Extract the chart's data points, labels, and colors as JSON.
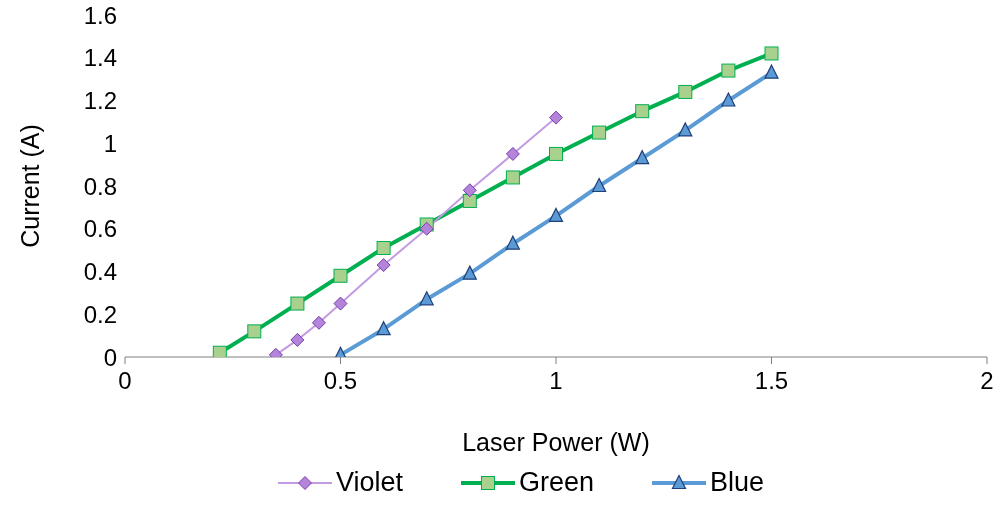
{
  "chart_data": {
    "type": "line",
    "xlabel": "Laser Power (W)",
    "ylabel": "Current (A)",
    "xlim": [
      0,
      2
    ],
    "xticks": [
      0,
      0.5,
      1,
      1.5,
      2
    ],
    "ylim": [
      0,
      1.6
    ],
    "yticks": [
      0,
      0.2,
      0.4,
      0.6,
      0.8,
      1,
      1.2,
      1.4,
      1.6
    ],
    "grid": false,
    "legend": "bottom",
    "series": [
      {
        "name": "Violet",
        "color": "#c39be0",
        "marker": "diamond",
        "x": [
          0.35,
          0.4,
          0.45,
          0.5,
          0.6,
          0.7,
          0.8,
          0.9,
          1.0
        ],
        "values": [
          0.01,
          0.08,
          0.16,
          0.25,
          0.43,
          0.6,
          0.78,
          0.95,
          1.12
        ]
      },
      {
        "name": "Green",
        "color": "#00b050",
        "marker": "square",
        "x": [
          0.22,
          0.3,
          0.4,
          0.5,
          0.6,
          0.7,
          0.8,
          0.9,
          1.0,
          1.1,
          1.2,
          1.3,
          1.4,
          1.5
        ],
        "values": [
          0.02,
          0.12,
          0.25,
          0.38,
          0.51,
          0.62,
          0.73,
          0.84,
          0.95,
          1.05,
          1.15,
          1.24,
          1.34,
          1.42
        ]
      },
      {
        "name": "Blue",
        "color": "#5b9bd5",
        "marker": "triangle",
        "x": [
          0.5,
          0.6,
          0.7,
          0.8,
          0.9,
          1.0,
          1.1,
          1.2,
          1.3,
          1.4,
          1.5
        ],
        "values": [
          0.01,
          0.13,
          0.27,
          0.39,
          0.53,
          0.66,
          0.8,
          0.93,
          1.06,
          1.2,
          1.33
        ]
      }
    ]
  }
}
